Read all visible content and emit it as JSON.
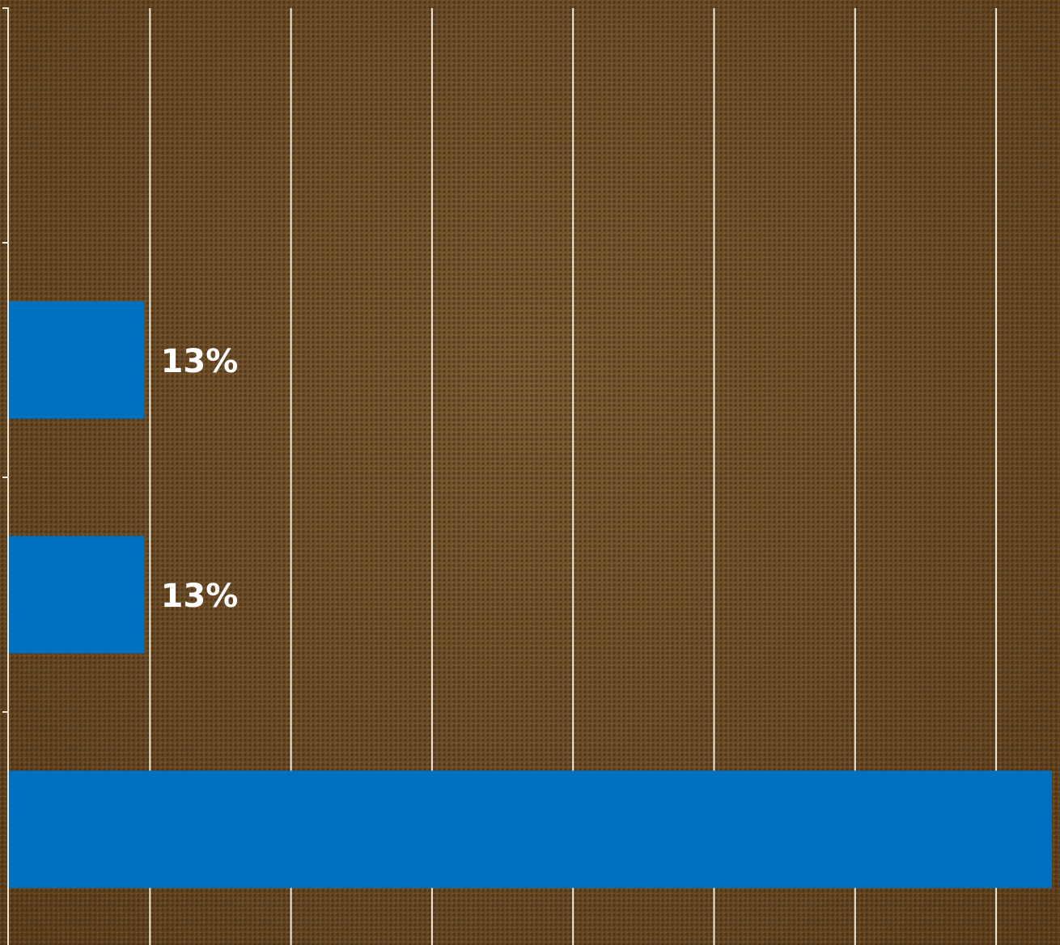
{
  "chart_data": {
    "type": "bar",
    "orientation": "horizontal",
    "categories": [
      "",
      "",
      "",
      ""
    ],
    "values": [
      0,
      13,
      13,
      100
    ],
    "value_labels": [
      "",
      "13%",
      "13%",
      ""
    ],
    "xlim": [
      0,
      100
    ],
    "grid": true,
    "gridline_count": 8,
    "colors": {
      "bar": "#0070c0",
      "grid": "#f2ead8",
      "label": "#ffffff",
      "background": "#6a4a22"
    }
  }
}
